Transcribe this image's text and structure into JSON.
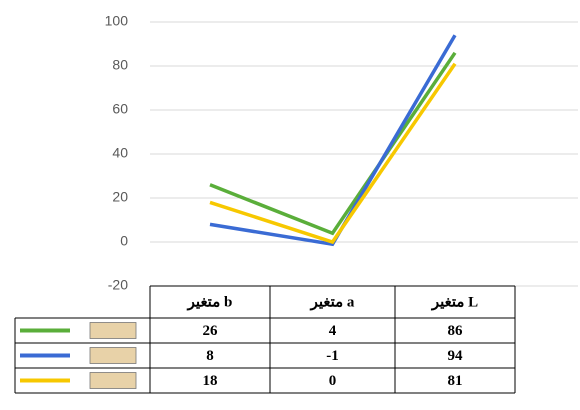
{
  "chart_data": {
    "type": "line",
    "categories": [
      "متغیر b",
      "متغیر a",
      "متغیر L"
    ],
    "series": [
      {
        "color": "#5aae3a",
        "values": [
          26,
          4,
          86
        ]
      },
      {
        "color": "#3a6bd4",
        "values": [
          8,
          -1,
          94
        ]
      },
      {
        "color": "#f7c800",
        "values": [
          18,
          0,
          81
        ]
      }
    ],
    "ylim": [
      -20,
      100
    ],
    "yticks": [
      -20,
      0,
      20,
      40,
      60,
      80,
      100
    ],
    "grid": true,
    "legend_swatch_color": "#e8d2a8"
  }
}
